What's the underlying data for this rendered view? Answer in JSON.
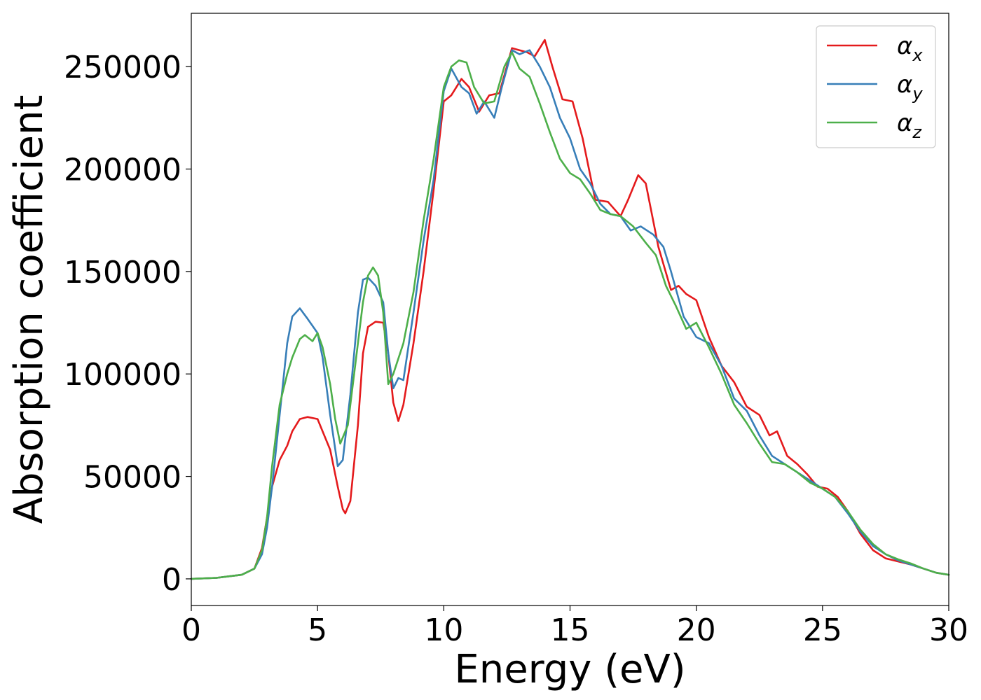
{
  "chart_data": {
    "type": "line",
    "title": "",
    "xlabel": "Energy (eV)",
    "ylabel": "Absorption coefficient",
    "xlim": [
      0,
      30
    ],
    "ylim": [
      -13000,
      276000
    ],
    "xticks": [
      "0",
      "5",
      "10",
      "15",
      "20",
      "25",
      "30"
    ],
    "yticks": [
      "0",
      "50000",
      "100000",
      "150000",
      "200000",
      "250000"
    ],
    "grid": false,
    "legend_position": "top-right",
    "series": [
      {
        "name": "α",
        "sub": "x",
        "color": "#e41a1c",
        "x": [
          0,
          1,
          2,
          2.5,
          2.8,
          3.0,
          3.2,
          3.5,
          3.8,
          4.0,
          4.3,
          4.6,
          5.0,
          5.2,
          5.5,
          5.8,
          6.0,
          6.1,
          6.3,
          6.6,
          6.8,
          7.0,
          7.3,
          7.6,
          7.8,
          8.0,
          8.2,
          8.4,
          8.8,
          9.2,
          9.6,
          10.0,
          10.3,
          10.7,
          11.0,
          11.4,
          11.8,
          12.2,
          12.7,
          13.0,
          13.3,
          13.6,
          14.0,
          14.3,
          14.7,
          15.1,
          15.5,
          16.0,
          16.5,
          17.0,
          17.3,
          17.7,
          18.0,
          18.5,
          19.0,
          19.3,
          19.6,
          20.0,
          20.5,
          21.0,
          21.5,
          22.0,
          22.5,
          22.9,
          23.2,
          23.6,
          24.0,
          24.4,
          24.8,
          25.2,
          25.6,
          26.0,
          26.5,
          27.0,
          27.5,
          28.0,
          28.5,
          29.0,
          29.5,
          30.0
        ],
        "y": [
          0,
          500,
          2000,
          5000,
          15000,
          30000,
          45000,
          58000,
          65000,
          72000,
          78000,
          79000,
          78000,
          72000,
          63000,
          45000,
          34000,
          32000,
          38000,
          75000,
          110000,
          123000,
          125500,
          125000,
          110000,
          86000,
          77000,
          85000,
          115000,
          150000,
          190000,
          233000,
          236000,
          244000,
          240000,
          228000,
          236000,
          237000,
          259000,
          258000,
          257000,
          255000,
          263000,
          250000,
          234000,
          233000,
          215000,
          185000,
          184000,
          177000,
          185000,
          197000,
          193000,
          162000,
          141000,
          143000,
          139000,
          136000,
          118000,
          104000,
          96000,
          84000,
          80000,
          70000,
          72000,
          60000,
          56000,
          51000,
          45000,
          44000,
          40000,
          33000,
          22000,
          14000,
          10000,
          8500,
          7000,
          5000,
          3000,
          2000
        ]
      },
      {
        "name": "α",
        "sub": "y",
        "color": "#377eb8",
        "x": [
          0,
          1,
          2,
          2.5,
          2.8,
          3.0,
          3.2,
          3.5,
          3.8,
          4.0,
          4.3,
          4.6,
          5.0,
          5.2,
          5.5,
          5.8,
          6.0,
          6.3,
          6.6,
          6.8,
          7.0,
          7.3,
          7.6,
          7.8,
          8.0,
          8.2,
          8.4,
          8.8,
          9.2,
          9.6,
          10.0,
          10.3,
          10.7,
          11.0,
          11.3,
          11.6,
          12.0,
          12.3,
          12.7,
          13.0,
          13.4,
          13.8,
          14.2,
          14.6,
          15.0,
          15.4,
          15.8,
          16.2,
          16.6,
          17.0,
          17.4,
          17.8,
          18.3,
          18.7,
          19.0,
          19.5,
          20.0,
          20.5,
          21.0,
          21.5,
          22.0,
          22.5,
          23.0,
          23.5,
          24.0,
          24.5,
          25.0,
          25.5,
          26.0,
          26.5,
          27.0,
          27.5,
          28.0,
          28.5,
          29.0,
          29.5,
          30.0
        ],
        "y": [
          0,
          500,
          2000,
          5000,
          12000,
          25000,
          45000,
          80000,
          115000,
          128000,
          132000,
          127000,
          120000,
          108000,
          80000,
          55000,
          58000,
          90000,
          130000,
          146000,
          147000,
          143000,
          135000,
          110000,
          93000,
          98000,
          97000,
          130000,
          165000,
          195000,
          238000,
          249000,
          240000,
          237000,
          227000,
          233000,
          225000,
          240000,
          258000,
          256000,
          258000,
          250000,
          240000,
          225000,
          215000,
          200000,
          193000,
          183000,
          178000,
          177000,
          170000,
          172000,
          168000,
          162000,
          150000,
          128000,
          118000,
          115000,
          104000,
          88000,
          82000,
          70000,
          60000,
          56000,
          52000,
          48000,
          44000,
          40000,
          32000,
          23000,
          16000,
          12000,
          9000,
          7000,
          5000,
          3000,
          2000
        ]
      },
      {
        "name": "α",
        "sub": "z",
        "color": "#4daf4a",
        "x": [
          0,
          1,
          2,
          2.5,
          2.8,
          3.0,
          3.2,
          3.5,
          3.8,
          4.0,
          4.3,
          4.5,
          4.8,
          5.0,
          5.2,
          5.5,
          5.7,
          5.9,
          6.2,
          6.5,
          6.8,
          7.0,
          7.2,
          7.4,
          7.6,
          7.8,
          8.0,
          8.4,
          8.8,
          9.2,
          9.6,
          10.0,
          10.3,
          10.6,
          10.9,
          11.2,
          11.6,
          12.0,
          12.4,
          12.7,
          13.0,
          13.4,
          13.8,
          14.2,
          14.6,
          15.0,
          15.4,
          15.8,
          16.2,
          16.6,
          17.0,
          17.5,
          18.0,
          18.4,
          18.8,
          19.2,
          19.6,
          20.0,
          20.5,
          21.0,
          21.5,
          22.0,
          22.5,
          23.0,
          23.5,
          24.0,
          24.5,
          25.0,
          25.5,
          26.0,
          26.5,
          27.0,
          27.5,
          28.0,
          28.5,
          29.0,
          29.5,
          30.0
        ],
        "y": [
          0,
          500,
          2000,
          5000,
          14000,
          30000,
          55000,
          85000,
          100000,
          108000,
          117000,
          119000,
          116000,
          120000,
          113000,
          95000,
          78000,
          66000,
          75000,
          105000,
          135000,
          148000,
          152000,
          148000,
          130000,
          95000,
          100000,
          115000,
          140000,
          175000,
          205000,
          240000,
          250000,
          253000,
          252000,
          240000,
          232000,
          233000,
          250000,
          257000,
          249000,
          245000,
          232000,
          218000,
          205000,
          198000,
          195000,
          188000,
          180000,
          178000,
          177000,
          172000,
          164000,
          158000,
          143000,
          133000,
          122000,
          125000,
          113000,
          100000,
          85000,
          76000,
          66000,
          57000,
          56000,
          52000,
          47000,
          44000,
          40000,
          33000,
          24000,
          17000,
          12000,
          9500,
          7500,
          5000,
          3000,
          2000
        ]
      }
    ]
  }
}
